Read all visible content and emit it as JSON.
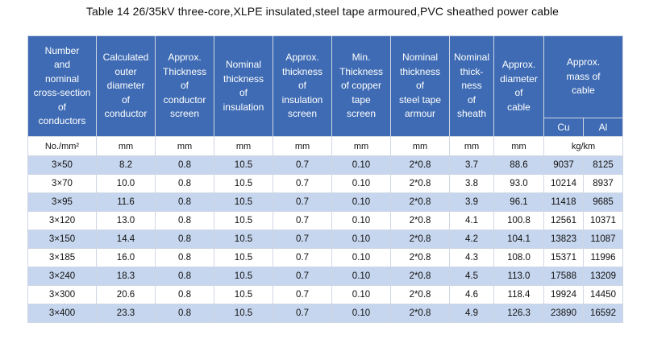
{
  "title": "Table 14    26/35kV three-core,XLPE insulated,steel tape armoured,PVC sheathed power cable",
  "headers": [
    "Number\nand\nnominal\ncross-section\nof\nconductors",
    "Calculated\nouter\ndiameter\nof\nconductor",
    "Approx.\nThickness\nof\nconductor\nscreen",
    "Nominal\nthickness\nof\ninsulation",
    "Approx.\nthickness\nof\ninsulation\nscreen",
    "Min.\nThickness\nof copper\ntape\nscreen",
    "Nominal\nthickness\nof\nsteel tape\narmour",
    "Nominal\nthick-\nness\nof\nsheath",
    "Approx.\ndiameter\nof\ncable",
    "Approx.\nmass of\ncable"
  ],
  "mass_sub": [
    "Cu",
    "Al"
  ],
  "units": [
    "No./mm²",
    "mm",
    "mm",
    "mm",
    "mm",
    "mm",
    "mm",
    "mm",
    "mm",
    "kg/km"
  ],
  "rows": [
    [
      "3×50",
      "8.2",
      "0.8",
      "10.5",
      "0.7",
      "0.10",
      "2*0.8",
      "3.7",
      "88.6",
      "9037",
      "8125"
    ],
    [
      "3×70",
      "10.0",
      "0.8",
      "10.5",
      "0.7",
      "0.10",
      "2*0.8",
      "3.8",
      "93.0",
      "10214",
      "8937"
    ],
    [
      "3×95",
      "11.6",
      "0.8",
      "10.5",
      "0.7",
      "0.10",
      "2*0.8",
      "3.9",
      "96.1",
      "11418",
      "9685"
    ],
    [
      "3×120",
      "13.0",
      "0.8",
      "10.5",
      "0.7",
      "0.10",
      "2*0.8",
      "4.1",
      "100.8",
      "12561",
      "10371"
    ],
    [
      "3×150",
      "14.4",
      "0.8",
      "10.5",
      "0.7",
      "0.10",
      "2*0.8",
      "4.2",
      "104.1",
      "13823",
      "11087"
    ],
    [
      "3×185",
      "16.0",
      "0.8",
      "10.5",
      "0.7",
      "0.10",
      "2*0.8",
      "4.3",
      "108.0",
      "15371",
      "11996"
    ],
    [
      "3×240",
      "18.3",
      "0.8",
      "10.5",
      "0.7",
      "0.10",
      "2*0.8",
      "4.5",
      "113.0",
      "17588",
      "13209"
    ],
    [
      "3×300",
      "20.6",
      "0.8",
      "10.5",
      "0.7",
      "0.10",
      "2*0.8",
      "4.6",
      "118.4",
      "19924",
      "14450"
    ],
    [
      "3×400",
      "23.3",
      "0.8",
      "10.5",
      "0.7",
      "0.10",
      "2*0.8",
      "4.9",
      "126.3",
      "23890",
      "16592"
    ]
  ]
}
